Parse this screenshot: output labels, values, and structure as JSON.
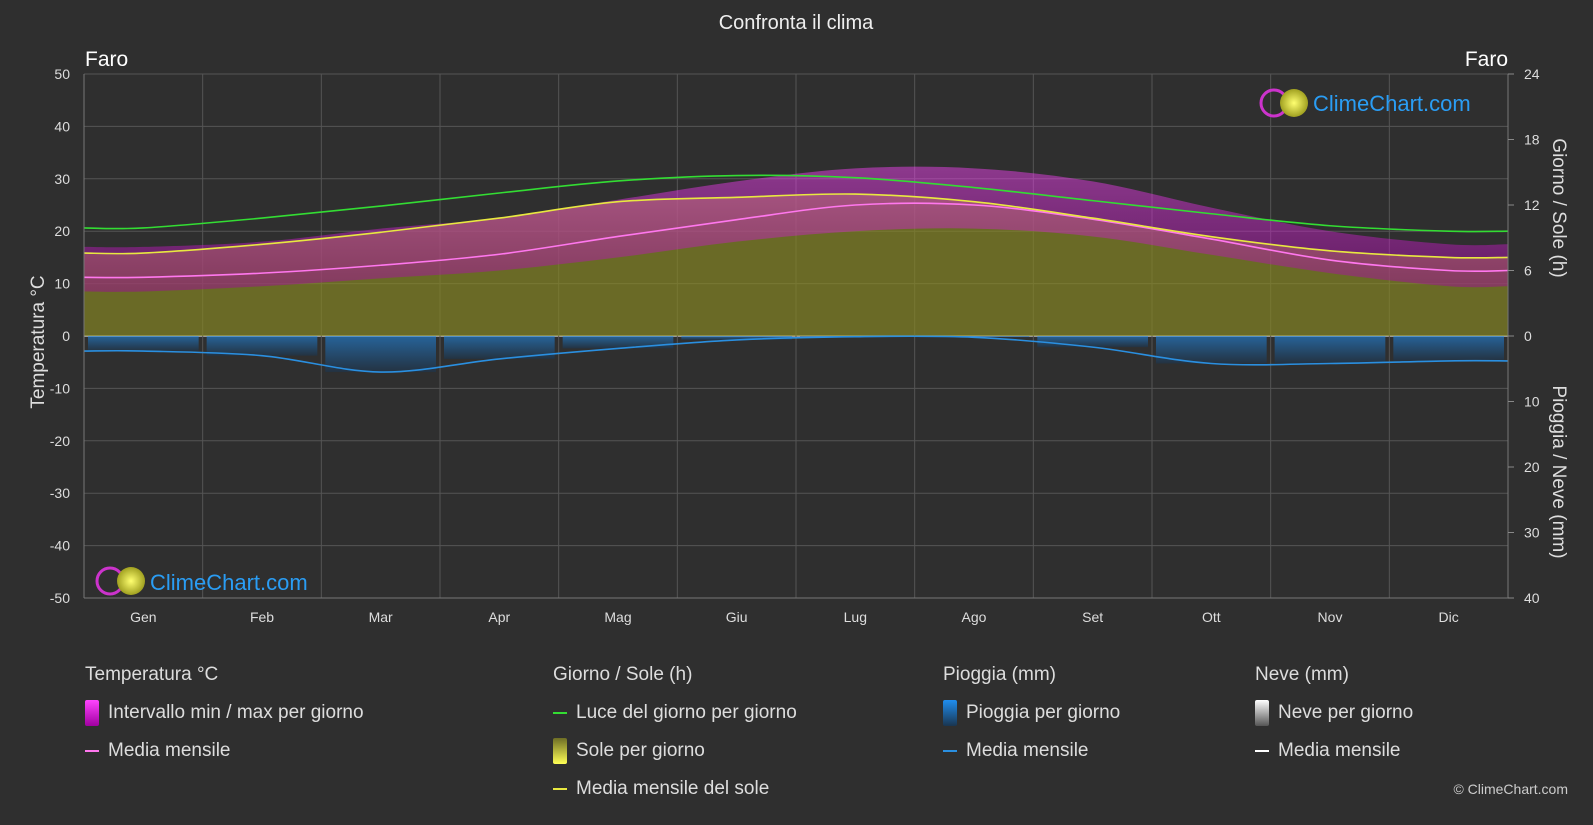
{
  "title": "Confronta il clima",
  "location_left": "Faro",
  "location_right": "Faro",
  "watermark": "ClimeChart.com",
  "copyright": "© ClimeChart.com",
  "colors": {
    "background": "#2f2f2f",
    "grid": "#5a5a5a",
    "temp_range": "#d020d0",
    "temp_mean": "#ff77ee",
    "daylight": "#33dd33",
    "sunshine_fill": "#9a9a20",
    "sunshine_mean": "#e8e840",
    "rain": "#1e6fb8",
    "rain_mean": "#2a8fe0",
    "snow_mean": "#ffffff",
    "brand": "#2a9df4"
  },
  "legend": {
    "temperature": {
      "title": "Temperatura °C",
      "range": "Intervallo min / max per giorno",
      "mean": "Media mensile"
    },
    "sun": {
      "title": "Giorno / Sole (h)",
      "daylight": "Luce del giorno per giorno",
      "sunshine": "Sole per giorno",
      "mean": "Media mensile del sole"
    },
    "rain": {
      "title": "Pioggia (mm)",
      "daily": "Pioggia per giorno",
      "mean": "Media mensile"
    },
    "snow": {
      "title": "Neve (mm)",
      "daily": "Neve per giorno",
      "mean": "Media mensile"
    }
  },
  "chart_data": {
    "type": "area",
    "title": "Confronta il clima",
    "months": [
      "Gen",
      "Feb",
      "Mar",
      "Apr",
      "Mag",
      "Giu",
      "Lug",
      "Ago",
      "Set",
      "Ott",
      "Nov",
      "Dic"
    ],
    "y_left": {
      "label": "Temperatura °C",
      "min": -50,
      "max": 50,
      "ticks": [
        50,
        40,
        30,
        20,
        10,
        0,
        -10,
        -20,
        -30,
        -40,
        -50
      ]
    },
    "y_right_top": {
      "label": "Giorno / Sole (h)",
      "min": 0,
      "max": 24,
      "ticks": [
        24,
        18,
        12,
        6,
        0
      ]
    },
    "y_right_bottom": {
      "label": "Pioggia / Neve (mm)",
      "min": 0,
      "max": 40,
      "ticks": [
        0,
        10,
        20,
        30,
        40
      ]
    },
    "grid": true,
    "series": [
      {
        "name": "Intervallo min / max per giorno",
        "axis": "temperature",
        "kind": "band",
        "min": [
          8.5,
          9.5,
          11,
          12.5,
          15,
          18,
          20,
          20.5,
          19,
          15.5,
          12,
          9.5
        ],
        "max": [
          17,
          18,
          20.5,
          22.5,
          26,
          29.5,
          32,
          32,
          29.5,
          24.5,
          20,
          17.5
        ]
      },
      {
        "name": "Media mensile",
        "axis": "temperature",
        "kind": "line",
        "values": [
          11.2,
          12.0,
          13.5,
          15.6,
          19.0,
          22.2,
          25.0,
          25.0,
          22.3,
          18.5,
          14.5,
          12.5
        ]
      },
      {
        "name": "Luce del giorno per giorno",
        "axis": "sun",
        "kind": "line",
        "values": [
          9.9,
          10.8,
          11.9,
          13.1,
          14.2,
          14.7,
          14.5,
          13.6,
          12.4,
          11.2,
          10.1,
          9.6
        ]
      },
      {
        "name": "Sole per giorno",
        "axis": "sun",
        "kind": "area",
        "values": [
          7.6,
          8.4,
          9.5,
          10.8,
          12.3,
          12.7,
          13.0,
          12.3,
          10.8,
          9.1,
          7.8,
          7.2
        ]
      },
      {
        "name": "Media mensile del sole",
        "axis": "sun",
        "kind": "line",
        "values": [
          7.6,
          8.4,
          9.5,
          10.8,
          12.3,
          12.7,
          13.0,
          12.3,
          10.8,
          9.1,
          7.8,
          7.2
        ]
      },
      {
        "name": "Pioggia per giorno",
        "axis": "precip",
        "kind": "bars",
        "values": [
          2.3,
          3.0,
          5.5,
          3.5,
          1.9,
          0.6,
          0.1,
          0.2,
          1.7,
          4.2,
          4.2,
          3.8
        ]
      },
      {
        "name": "Media mensile",
        "axis": "precip",
        "kind": "line",
        "values": [
          2.3,
          3.0,
          5.5,
          3.5,
          1.9,
          0.6,
          0.1,
          0.2,
          1.7,
          4.2,
          4.2,
          3.8
        ]
      }
    ]
  }
}
